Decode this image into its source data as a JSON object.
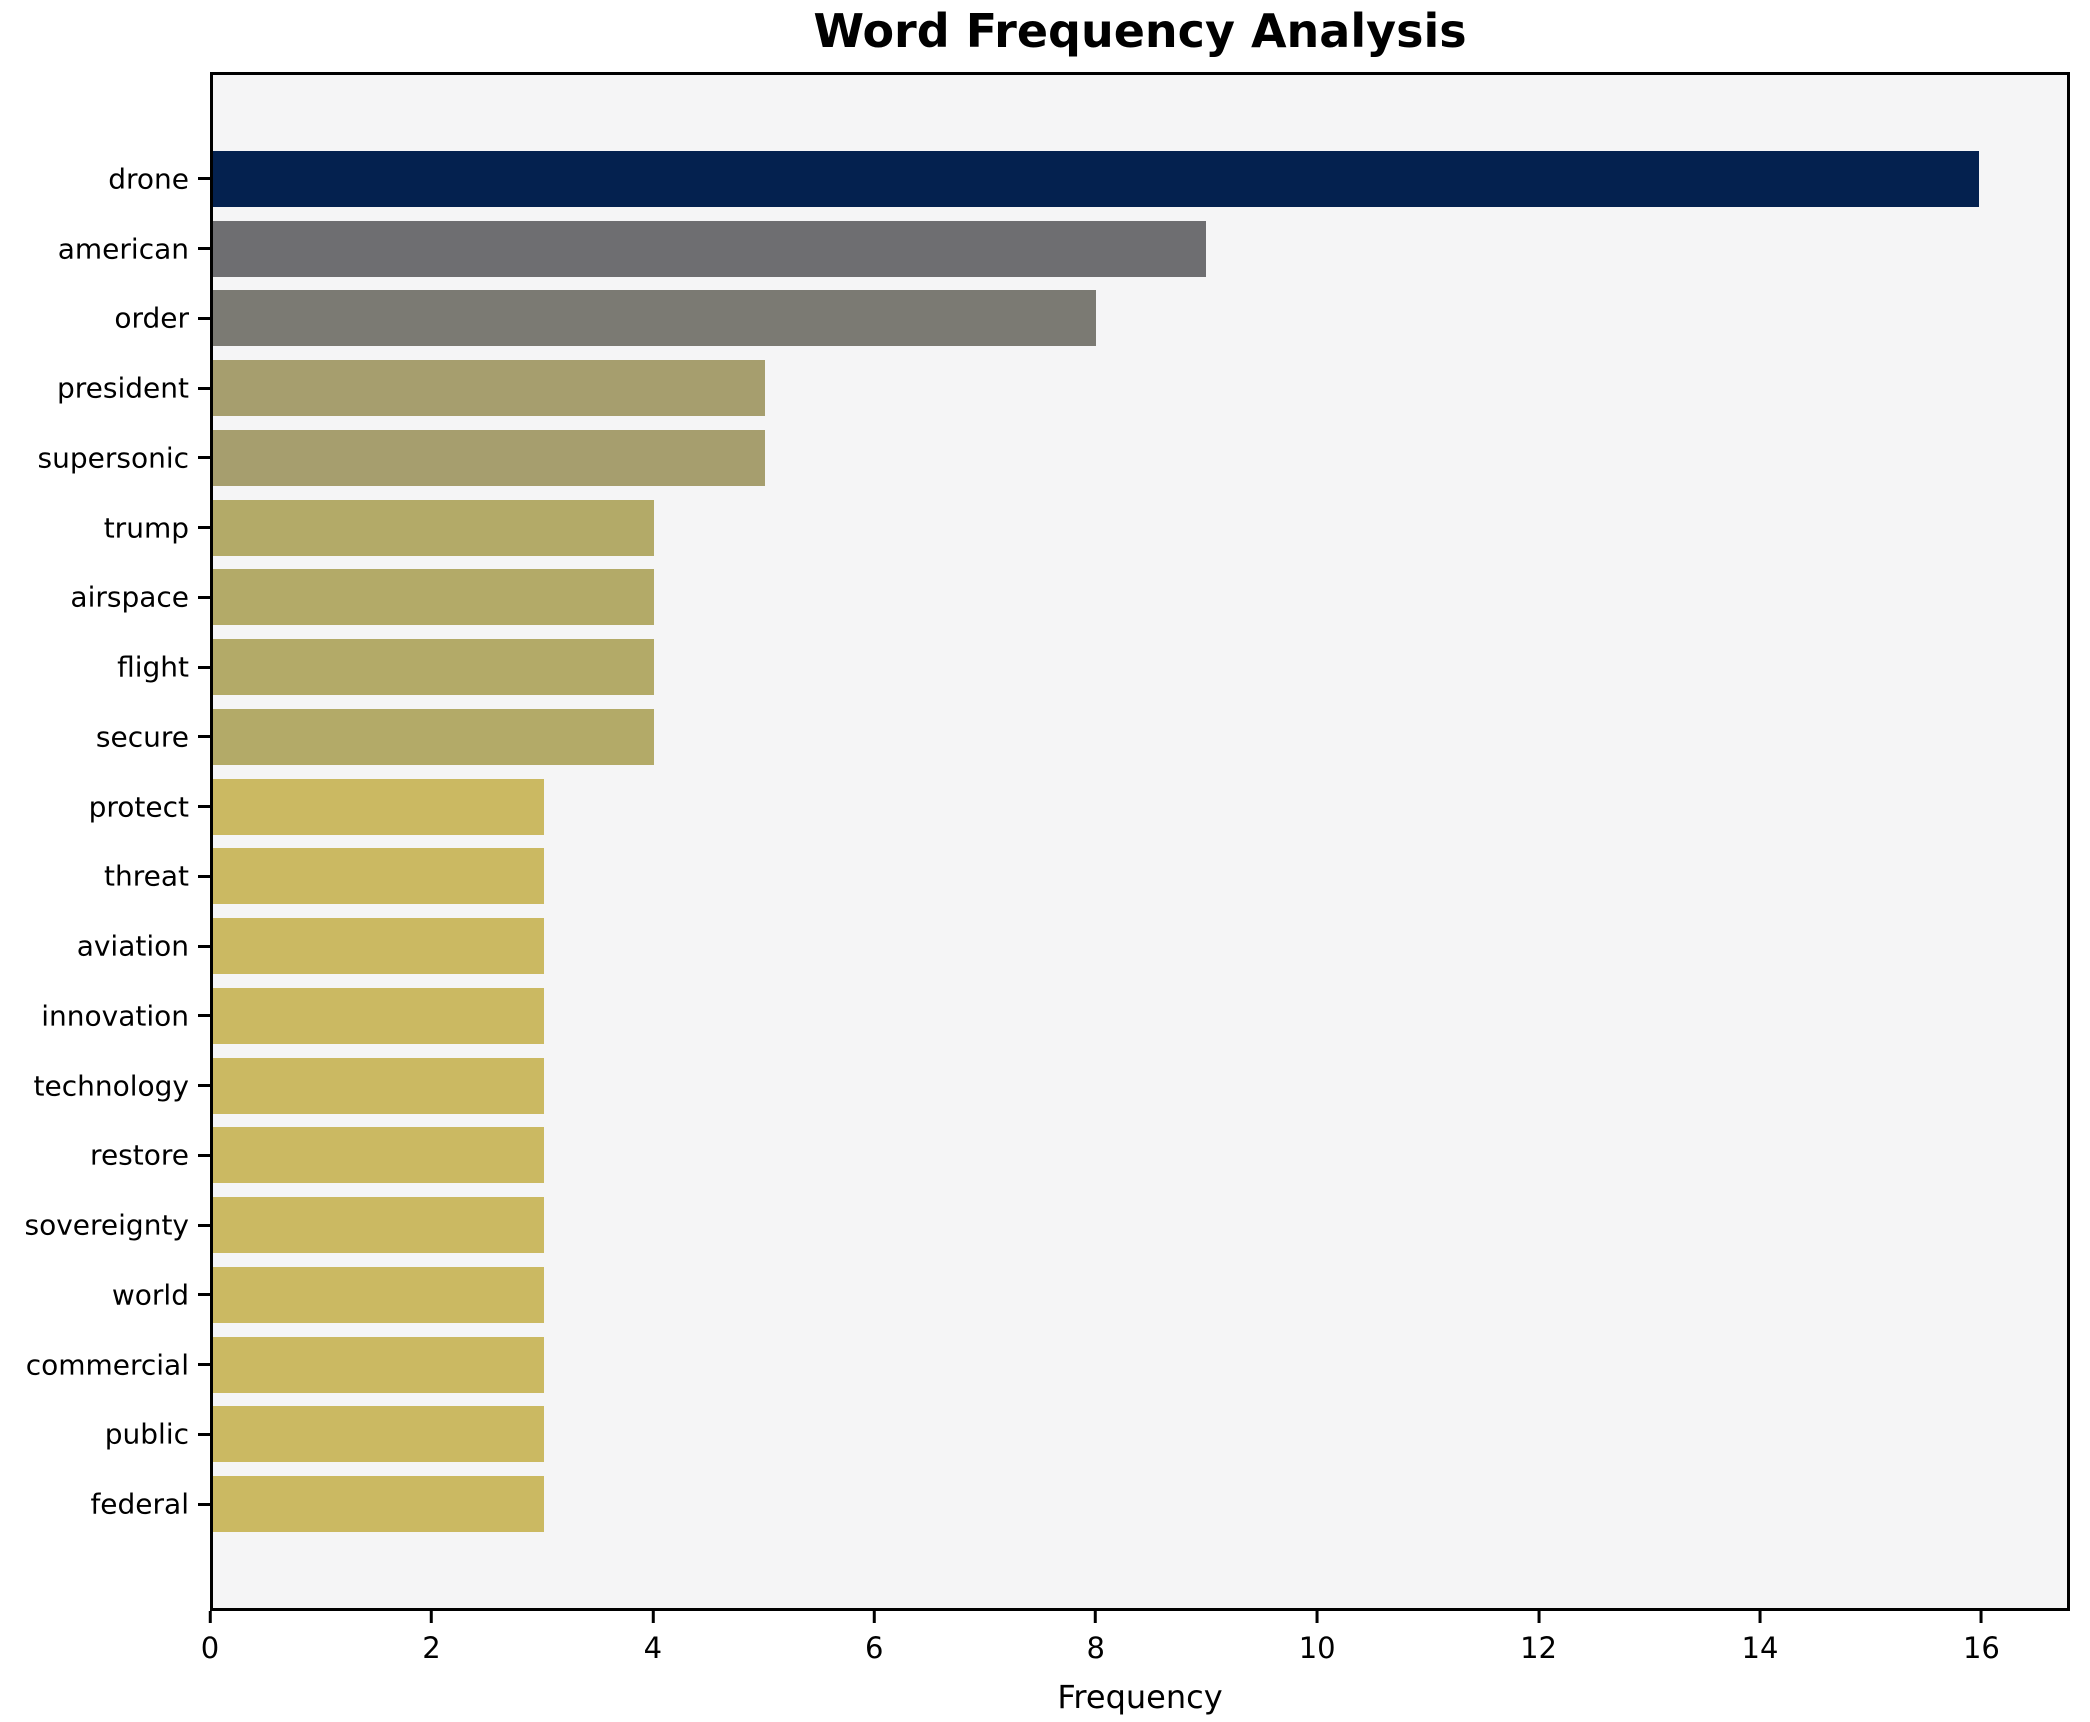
{
  "chart_data": {
    "type": "bar",
    "orientation": "horizontal",
    "title": "Word Frequency Analysis",
    "xlabel": "Frequency",
    "ylabel": "",
    "xlim": [
      0,
      16.8
    ],
    "x_ticks": [
      0,
      2,
      4,
      6,
      8,
      10,
      12,
      14,
      16
    ],
    "grid": false,
    "legend": "none",
    "plot_background": "#f5f5f6",
    "spine_color": "#000000",
    "categories": [
      "drone",
      "american",
      "order",
      "president",
      "supersonic",
      "trump",
      "airspace",
      "flight",
      "secure",
      "protect",
      "threat",
      "aviation",
      "innovation",
      "technology",
      "restore",
      "sovereignty",
      "world",
      "commercial",
      "public",
      "federal"
    ],
    "values": [
      16,
      9,
      8,
      5,
      5,
      4,
      4,
      4,
      4,
      3,
      3,
      3,
      3,
      3,
      3,
      3,
      3,
      3,
      3,
      3
    ],
    "bar_colors": [
      "#04214f",
      "#6e6e71",
      "#7b7a73",
      "#a69e6e",
      "#a69e6e",
      "#b3aa68",
      "#b3aa68",
      "#b3aa68",
      "#b3aa68",
      "#cbb962",
      "#cbb962",
      "#cbb962",
      "#cbb962",
      "#cbb962",
      "#cbb962",
      "#cbb962",
      "#cbb962",
      "#cbb962",
      "#cbb962",
      "#cbb962"
    ]
  }
}
